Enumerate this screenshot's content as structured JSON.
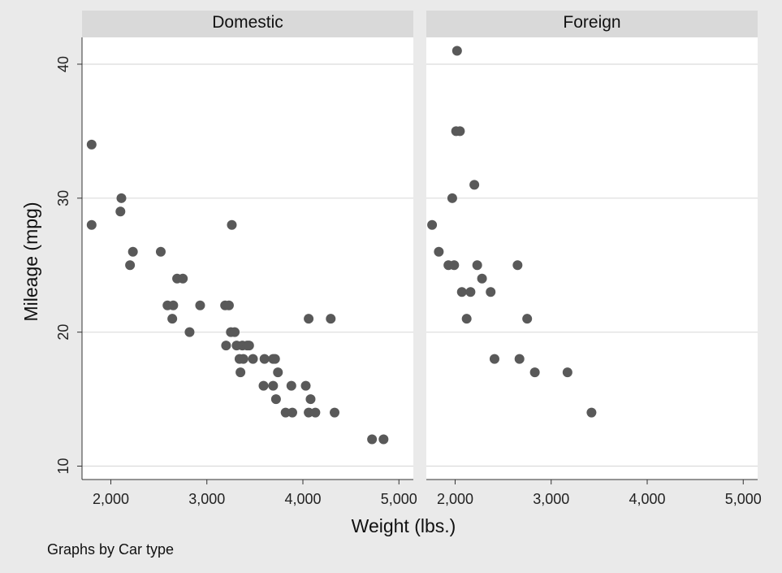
{
  "chart_data": {
    "type": "scatter",
    "xlabel": "Weight (lbs.)",
    "ylabel": "Mileage (mpg)",
    "note": "Graphs by Car type",
    "x_ticks": [
      "2,000",
      "3,000",
      "4,000",
      "5,000"
    ],
    "y_ticks": [
      "10",
      "20",
      "30",
      "40"
    ],
    "xlim": [
      1700,
      5150
    ],
    "ylim": [
      9,
      42
    ],
    "grid": true,
    "colors": {
      "marker": "#595959",
      "background": "#eaeaea",
      "panel": "#ffffff",
      "strip": "#d9d9d9",
      "grid": "#dcdcdc"
    },
    "panels": [
      {
        "title": "Domestic",
        "points": [
          [
            1800,
            34
          ],
          [
            1800,
            28
          ],
          [
            2110,
            30
          ],
          [
            2100,
            29
          ],
          [
            2230,
            26
          ],
          [
            2200,
            25
          ],
          [
            2520,
            26
          ],
          [
            2590,
            22
          ],
          [
            2650,
            22
          ],
          [
            2640,
            21
          ],
          [
            2690,
            24
          ],
          [
            2750,
            24
          ],
          [
            2820,
            20
          ],
          [
            2930,
            22
          ],
          [
            3190,
            22
          ],
          [
            3230,
            22
          ],
          [
            3200,
            19
          ],
          [
            3260,
            28
          ],
          [
            3250,
            20
          ],
          [
            3290,
            20
          ],
          [
            3310,
            19
          ],
          [
            3340,
            18
          ],
          [
            3350,
            17
          ],
          [
            3380,
            18
          ],
          [
            3370,
            19
          ],
          [
            3420,
            19
          ],
          [
            3440,
            19
          ],
          [
            3480,
            18
          ],
          [
            3600,
            18
          ],
          [
            3690,
            18
          ],
          [
            3710,
            18
          ],
          [
            3590,
            16
          ],
          [
            3690,
            16
          ],
          [
            3720,
            15
          ],
          [
            3740,
            17
          ],
          [
            3820,
            14
          ],
          [
            3890,
            14
          ],
          [
            3880,
            16
          ],
          [
            4030,
            16
          ],
          [
            4060,
            14
          ],
          [
            4080,
            15
          ],
          [
            4130,
            14
          ],
          [
            4060,
            21
          ],
          [
            4290,
            21
          ],
          [
            4330,
            14
          ],
          [
            4720,
            12
          ],
          [
            4840,
            12
          ]
        ]
      },
      {
        "title": "Foreign",
        "points": [
          [
            1760,
            28
          ],
          [
            1830,
            26
          ],
          [
            1930,
            25
          ],
          [
            1990,
            25
          ],
          [
            1970,
            30
          ],
          [
            2020,
            41
          ],
          [
            2010,
            35
          ],
          [
            2050,
            35
          ],
          [
            2070,
            23
          ],
          [
            2120,
            21
          ],
          [
            2160,
            23
          ],
          [
            2200,
            31
          ],
          [
            2230,
            25
          ],
          [
            2280,
            24
          ],
          [
            2370,
            23
          ],
          [
            2410,
            18
          ],
          [
            2650,
            25
          ],
          [
            2670,
            18
          ],
          [
            2750,
            21
          ],
          [
            2830,
            17
          ],
          [
            3170,
            17
          ],
          [
            3420,
            14
          ]
        ]
      }
    ]
  }
}
